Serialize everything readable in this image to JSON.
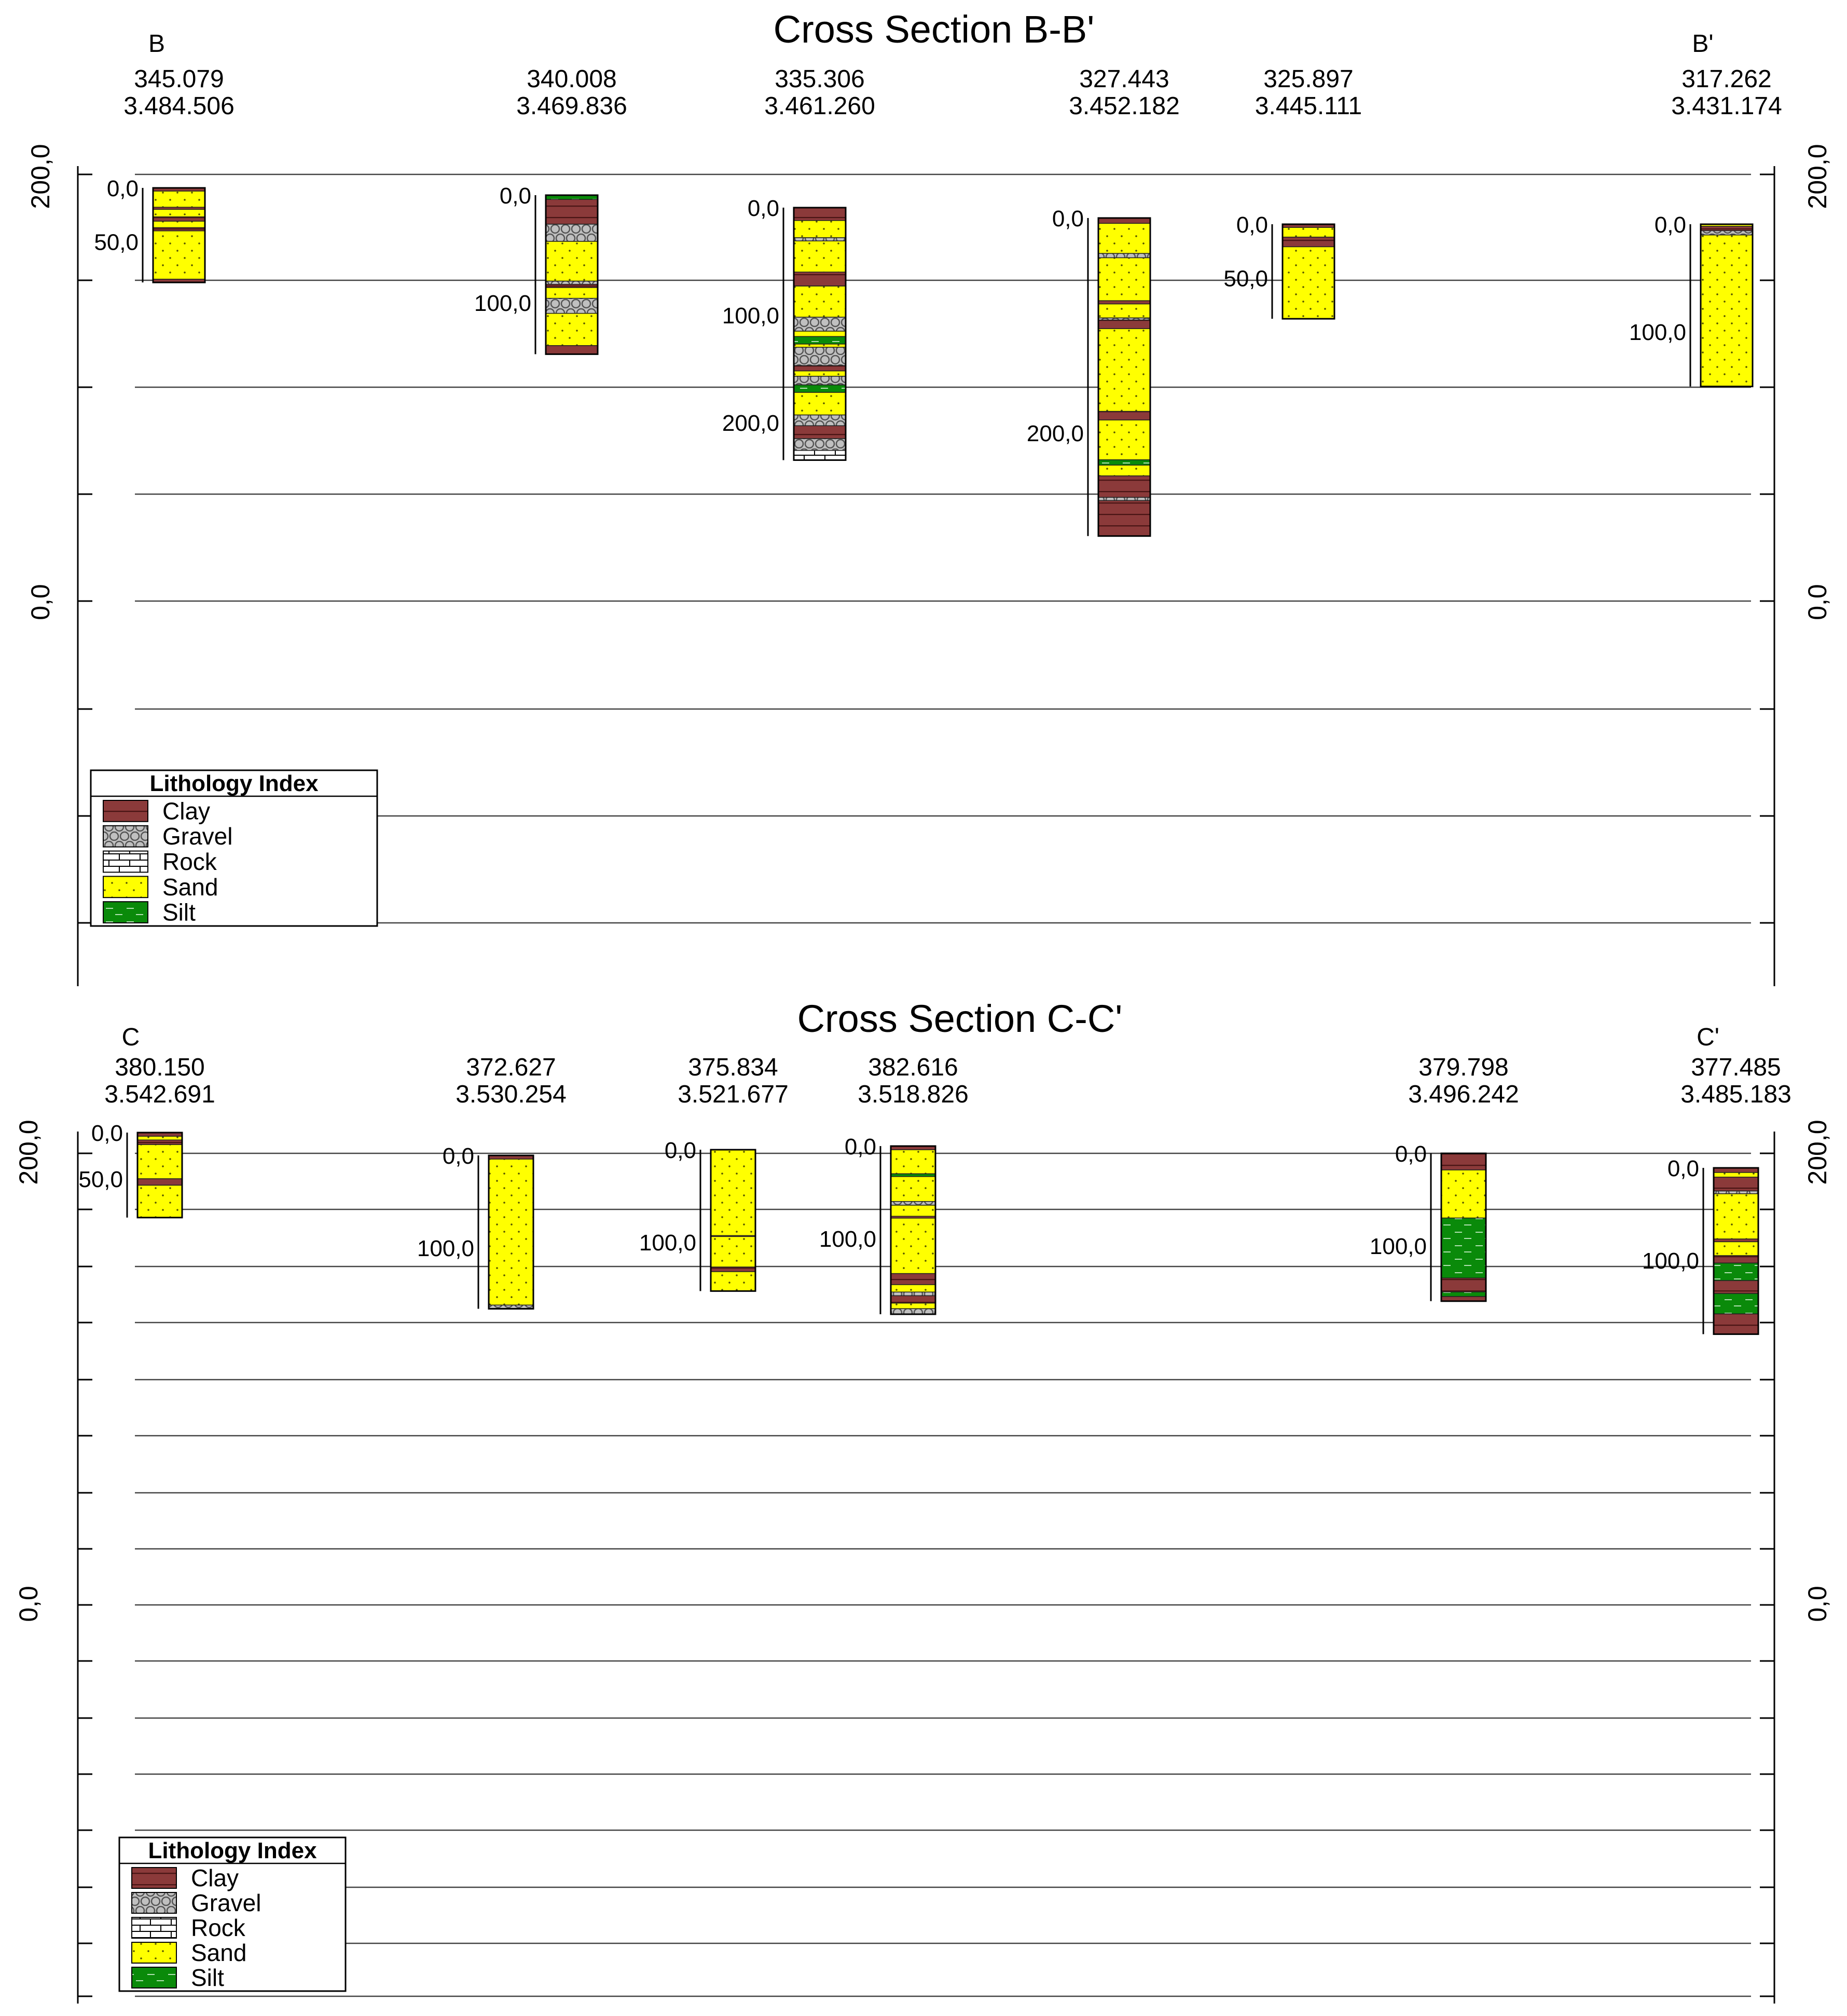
{
  "colors": {
    "clay": "#8b3a3a",
    "gravel": "#c0c0c0",
    "rock": "#ffffff",
    "sand": "#ffff00",
    "silt": "#0a8a0a",
    "line": "#000000",
    "grid": "#444444"
  },
  "pattern_icons": {
    "clay": "horizontal-lines-icon",
    "gravel": "circles-icon",
    "rock": "brick-icon",
    "sand": "dots-icon",
    "silt": "dashes-icon"
  },
  "sections": [
    {
      "id": "bb",
      "title": "Cross Section B-B'",
      "start_label": "B",
      "end_label": "B'",
      "axis_labels": [
        "200,0",
        "0,0"
      ],
      "legend": {
        "title": "Lithology Index",
        "items": [
          {
            "key": "clay",
            "label": "Clay"
          },
          {
            "key": "gravel",
            "label": "Gravel"
          },
          {
            "key": "rock",
            "label": "Rock"
          },
          {
            "key": "sand",
            "label": "Sand"
          },
          {
            "key": "silt",
            "label": "Silt"
          }
        ]
      },
      "boreholes": [
        {
          "coord_x": "345.079",
          "coord_y": "3.484.506",
          "depth_labels": [
            {
              "text": "0,0",
              "depth": 0
            },
            {
              "text": "50,0",
              "depth": 50
            }
          ],
          "total_depth": 88,
          "layers": [
            {
              "type": "clay",
              "from": 0,
              "to": 3
            },
            {
              "type": "sand",
              "from": 3,
              "to": 18
            },
            {
              "type": "clay",
              "from": 18,
              "to": 20
            },
            {
              "type": "sand",
              "from": 20,
              "to": 27
            },
            {
              "type": "clay",
              "from": 27,
              "to": 31
            },
            {
              "type": "sand",
              "from": 31,
              "to": 37
            },
            {
              "type": "clay",
              "from": 37,
              "to": 40
            },
            {
              "type": "sand",
              "from": 40,
              "to": 85
            },
            {
              "type": "clay",
              "from": 85,
              "to": 88
            }
          ]
        },
        {
          "coord_x": "340.008",
          "coord_y": "3.469.836",
          "depth_labels": [
            {
              "text": "0,0",
              "depth": 0
            },
            {
              "text": "100,0",
              "depth": 100
            }
          ],
          "total_depth": 148,
          "layers": [
            {
              "type": "silt",
              "from": 0,
              "to": 4
            },
            {
              "type": "clay",
              "from": 4,
              "to": 27
            },
            {
              "type": "gravel",
              "from": 27,
              "to": 43
            },
            {
              "type": "sand",
              "from": 43,
              "to": 80
            },
            {
              "type": "gravel",
              "from": 80,
              "to": 83
            },
            {
              "type": "clay",
              "from": 83,
              "to": 86
            },
            {
              "type": "sand",
              "from": 86,
              "to": 96
            },
            {
              "type": "gravel",
              "from": 96,
              "to": 110
            },
            {
              "type": "sand",
              "from": 110,
              "to": 140
            },
            {
              "type": "clay",
              "from": 140,
              "to": 148
            }
          ]
        },
        {
          "coord_x": "335.306",
          "coord_y": "3.461.260",
          "depth_labels": [
            {
              "text": "0,0",
              "depth": 0
            },
            {
              "text": "100,0",
              "depth": 100
            },
            {
              "text": "200,0",
              "depth": 200
            }
          ],
          "total_depth": 235,
          "layers": [
            {
              "type": "clay",
              "from": 0,
              "to": 12
            },
            {
              "type": "sand",
              "from": 12,
              "to": 28
            },
            {
              "type": "gravel",
              "from": 28,
              "to": 31
            },
            {
              "type": "sand",
              "from": 31,
              "to": 60
            },
            {
              "type": "clay",
              "from": 60,
              "to": 73
            },
            {
              "type": "sand",
              "from": 73,
              "to": 102
            },
            {
              "type": "gravel",
              "from": 102,
              "to": 115
            },
            {
              "type": "sand",
              "from": 115,
              "to": 120
            },
            {
              "type": "silt",
              "from": 120,
              "to": 127
            },
            {
              "type": "sand",
              "from": 127,
              "to": 130
            },
            {
              "type": "gravel",
              "from": 130,
              "to": 147
            },
            {
              "type": "clay",
              "from": 147,
              "to": 152
            },
            {
              "type": "sand",
              "from": 152,
              "to": 157
            },
            {
              "type": "gravel",
              "from": 157,
              "to": 165
            },
            {
              "type": "silt",
              "from": 165,
              "to": 172
            },
            {
              "type": "sand",
              "from": 172,
              "to": 193
            },
            {
              "type": "gravel",
              "from": 193,
              "to": 203
            },
            {
              "type": "clay",
              "from": 203,
              "to": 215
            },
            {
              "type": "gravel",
              "from": 215,
              "to": 226
            },
            {
              "type": "rock",
              "from": 226,
              "to": 235
            }
          ]
        },
        {
          "coord_x": "327.443",
          "coord_y": "3.452.182",
          "depth_labels": [
            {
              "text": "0,0",
              "depth": 0
            },
            {
              "text": "200,0",
              "depth": 200
            }
          ],
          "total_depth": 296,
          "layers": [
            {
              "type": "clay",
              "from": 0,
              "to": 5
            },
            {
              "type": "sand",
              "from": 5,
              "to": 33
            },
            {
              "type": "gravel",
              "from": 33,
              "to": 37
            },
            {
              "type": "sand",
              "from": 37,
              "to": 77
            },
            {
              "type": "clay",
              "from": 77,
              "to": 80
            },
            {
              "type": "sand",
              "from": 80,
              "to": 93
            },
            {
              "type": "gravel",
              "from": 93,
              "to": 95
            },
            {
              "type": "clay",
              "from": 95,
              "to": 103
            },
            {
              "type": "sand",
              "from": 103,
              "to": 180
            },
            {
              "type": "clay",
              "from": 180,
              "to": 188
            },
            {
              "type": "sand",
              "from": 188,
              "to": 225
            },
            {
              "type": "silt",
              "from": 225,
              "to": 230
            },
            {
              "type": "sand",
              "from": 230,
              "to": 240
            },
            {
              "type": "clay",
              "from": 240,
              "to": 260
            },
            {
              "type": "gravel",
              "from": 260,
              "to": 263
            },
            {
              "type": "clay",
              "from": 263,
              "to": 296
            }
          ]
        },
        {
          "coord_x": "325.897",
          "coord_y": "3.445.111",
          "depth_labels": [
            {
              "text": "0,0",
              "depth": 0
            },
            {
              "text": "50,0",
              "depth": 50
            }
          ],
          "total_depth": 88,
          "layers": [
            {
              "type": "clay",
              "from": 0,
              "to": 3
            },
            {
              "type": "sand",
              "from": 3,
              "to": 12
            },
            {
              "type": "clay",
              "from": 12,
              "to": 21
            },
            {
              "type": "sand",
              "from": 21,
              "to": 88
            }
          ]
        },
        {
          "coord_x": "317.262",
          "coord_y": "3.431.174",
          "depth_labels": [
            {
              "text": "0,0",
              "depth": 0
            },
            {
              "text": "100,0",
              "depth": 100
            }
          ],
          "total_depth": 151,
          "layers": [
            {
              "type": "sand",
              "from": 0,
              "to": 2
            },
            {
              "type": "clay",
              "from": 2,
              "to": 6
            },
            {
              "type": "gravel",
              "from": 6,
              "to": 10
            },
            {
              "type": "sand",
              "from": 10,
              "to": 151
            }
          ]
        }
      ]
    },
    {
      "id": "cc",
      "title": "Cross Section C-C'",
      "start_label": "C",
      "end_label": "C'",
      "axis_labels": [
        "200,0",
        "0,0"
      ],
      "legend": {
        "title": "Lithology Index",
        "items": [
          {
            "key": "clay",
            "label": "Clay"
          },
          {
            "key": "gravel",
            "label": "Gravel"
          },
          {
            "key": "rock",
            "label": "Rock"
          },
          {
            "key": "sand",
            "label": "Sand"
          },
          {
            "key": "silt",
            "label": "Silt"
          }
        ]
      },
      "boreholes": [
        {
          "coord_x": "380.150",
          "coord_y": "3.542.691",
          "depth_labels": [
            {
              "text": "0,0",
              "depth": 0
            },
            {
              "text": "50,0",
              "depth": 50
            }
          ],
          "total_depth": 92,
          "layers": [
            {
              "type": "clay",
              "from": 0,
              "to": 4
            },
            {
              "type": "sand",
              "from": 4,
              "to": 8
            },
            {
              "type": "clay",
              "from": 8,
              "to": 13
            },
            {
              "type": "sand",
              "from": 13,
              "to": 50
            },
            {
              "type": "clay",
              "from": 50,
              "to": 57
            },
            {
              "type": "sand",
              "from": 57,
              "to": 92
            }
          ]
        },
        {
          "coord_x": "372.627",
          "coord_y": "3.530.254",
          "depth_labels": [
            {
              "text": "0,0",
              "depth": 0
            },
            {
              "text": "100,0",
              "depth": 100
            }
          ],
          "total_depth": 166,
          "layers": [
            {
              "type": "clay",
              "from": 0,
              "to": 4
            },
            {
              "type": "sand",
              "from": 4,
              "to": 162
            },
            {
              "type": "gravel",
              "from": 162,
              "to": 166
            }
          ]
        },
        {
          "coord_x": "375.834",
          "coord_y": "3.521.677",
          "depth_labels": [
            {
              "text": "0,0",
              "depth": 0
            },
            {
              "text": "100,0",
              "depth": 100
            }
          ],
          "total_depth": 153,
          "layers": [
            {
              "type": "sand",
              "from": 0,
              "to": 93
            },
            {
              "type": "clay",
              "from": 93,
              "to": 94
            },
            {
              "type": "sand",
              "from": 94,
              "to": 127
            },
            {
              "type": "clay",
              "from": 127,
              "to": 132
            },
            {
              "type": "sand",
              "from": 132,
              "to": 153
            }
          ]
        },
        {
          "coord_x": "382.616",
          "coord_y": "3.518.826",
          "depth_labels": [
            {
              "text": "0,0",
              "depth": 0
            },
            {
              "text": "100,0",
              "depth": 100
            }
          ],
          "total_depth": 182,
          "layers": [
            {
              "type": "clay",
              "from": 0,
              "to": 4
            },
            {
              "type": "sand",
              "from": 4,
              "to": 30
            },
            {
              "type": "silt",
              "from": 30,
              "to": 33
            },
            {
              "type": "sand",
              "from": 33,
              "to": 60
            },
            {
              "type": "gravel",
              "from": 60,
              "to": 64
            },
            {
              "type": "sand",
              "from": 64,
              "to": 76
            },
            {
              "type": "clay",
              "from": 76,
              "to": 78
            },
            {
              "type": "sand",
              "from": 78,
              "to": 138
            },
            {
              "type": "clay",
              "from": 138,
              "to": 150
            },
            {
              "type": "sand",
              "from": 150,
              "to": 158
            },
            {
              "type": "gravel",
              "from": 158,
              "to": 162
            },
            {
              "type": "clay",
              "from": 162,
              "to": 170
            },
            {
              "type": "sand",
              "from": 170,
              "to": 176
            },
            {
              "type": "gravel",
              "from": 176,
              "to": 182
            }
          ]
        },
        {
          "coord_x": "379.798",
          "coord_y": "3.496.242",
          "depth_labels": [
            {
              "text": "0,0",
              "depth": 0
            },
            {
              "text": "100,0",
              "depth": 100
            }
          ],
          "total_depth": 160,
          "layers": [
            {
              "type": "clay",
              "from": 0,
              "to": 18
            },
            {
              "type": "sand",
              "from": 18,
              "to": 70
            },
            {
              "type": "silt",
              "from": 70,
              "to": 135
            },
            {
              "type": "clay",
              "from": 135,
              "to": 150
            },
            {
              "type": "silt",
              "from": 150,
              "to": 155
            },
            {
              "type": "clay",
              "from": 155,
              "to": 160
            }
          ]
        },
        {
          "coord_x": "377.485",
          "coord_y": "3.485.183",
          "depth_labels": [
            {
              "text": "0,0",
              "depth": 0
            },
            {
              "text": "100,0",
              "depth": 100
            }
          ],
          "total_depth": 180,
          "layers": [
            {
              "type": "clay",
              "from": 0,
              "to": 5
            },
            {
              "type": "sand",
              "from": 5,
              "to": 10
            },
            {
              "type": "clay",
              "from": 10,
              "to": 25
            },
            {
              "type": "gravel",
              "from": 25,
              "to": 28
            },
            {
              "type": "sand",
              "from": 28,
              "to": 77
            },
            {
              "type": "clay",
              "from": 77,
              "to": 80
            },
            {
              "type": "sand",
              "from": 80,
              "to": 95
            },
            {
              "type": "clay",
              "from": 95,
              "to": 103
            },
            {
              "type": "silt",
              "from": 103,
              "to": 122
            },
            {
              "type": "clay",
              "from": 122,
              "to": 136
            },
            {
              "type": "silt",
              "from": 136,
              "to": 158
            },
            {
              "type": "clay",
              "from": 158,
              "to": 180
            }
          ]
        }
      ]
    }
  ]
}
